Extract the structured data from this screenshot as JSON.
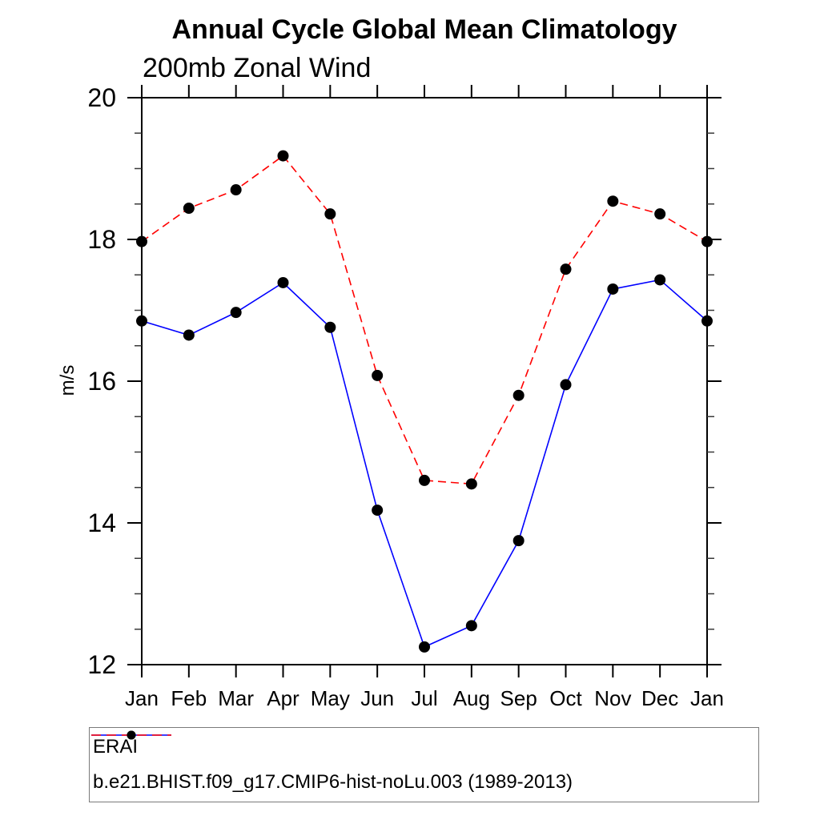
{
  "chart_data": {
    "type": "line",
    "title": "Annual Cycle Global Mean Climatology",
    "subtitle": "200mb Zonal Wind",
    "xlabel": "",
    "ylabel": "m/s",
    "categories": [
      "Jan",
      "Feb",
      "Mar",
      "Apr",
      "May",
      "Jun",
      "Jul",
      "Aug",
      "Sep",
      "Oct",
      "Nov",
      "Dec",
      "Jan"
    ],
    "ylim": [
      12,
      20
    ],
    "y_major_ticks": [
      12,
      14,
      16,
      18,
      20
    ],
    "y_minor_step": 0.5,
    "grid": false,
    "legend_position": "bottom",
    "marker_color": "#000000",
    "series": [
      {
        "name": "ERAI",
        "color": "#0000ff",
        "line_style": "solid",
        "values": [
          16.85,
          16.65,
          16.97,
          17.39,
          16.76,
          14.18,
          12.25,
          12.55,
          13.75,
          15.95,
          17.3,
          17.43,
          16.85
        ]
      },
      {
        "name": "b.e21.BHIST.f09_g17.CMIP6-hist-noLu.003 (1989-2013)",
        "color": "#ff0000",
        "line_style": "dashed",
        "values": [
          17.97,
          18.44,
          18.7,
          19.18,
          18.36,
          16.08,
          14.6,
          14.55,
          15.8,
          17.58,
          18.54,
          18.36,
          17.97
        ]
      }
    ]
  }
}
